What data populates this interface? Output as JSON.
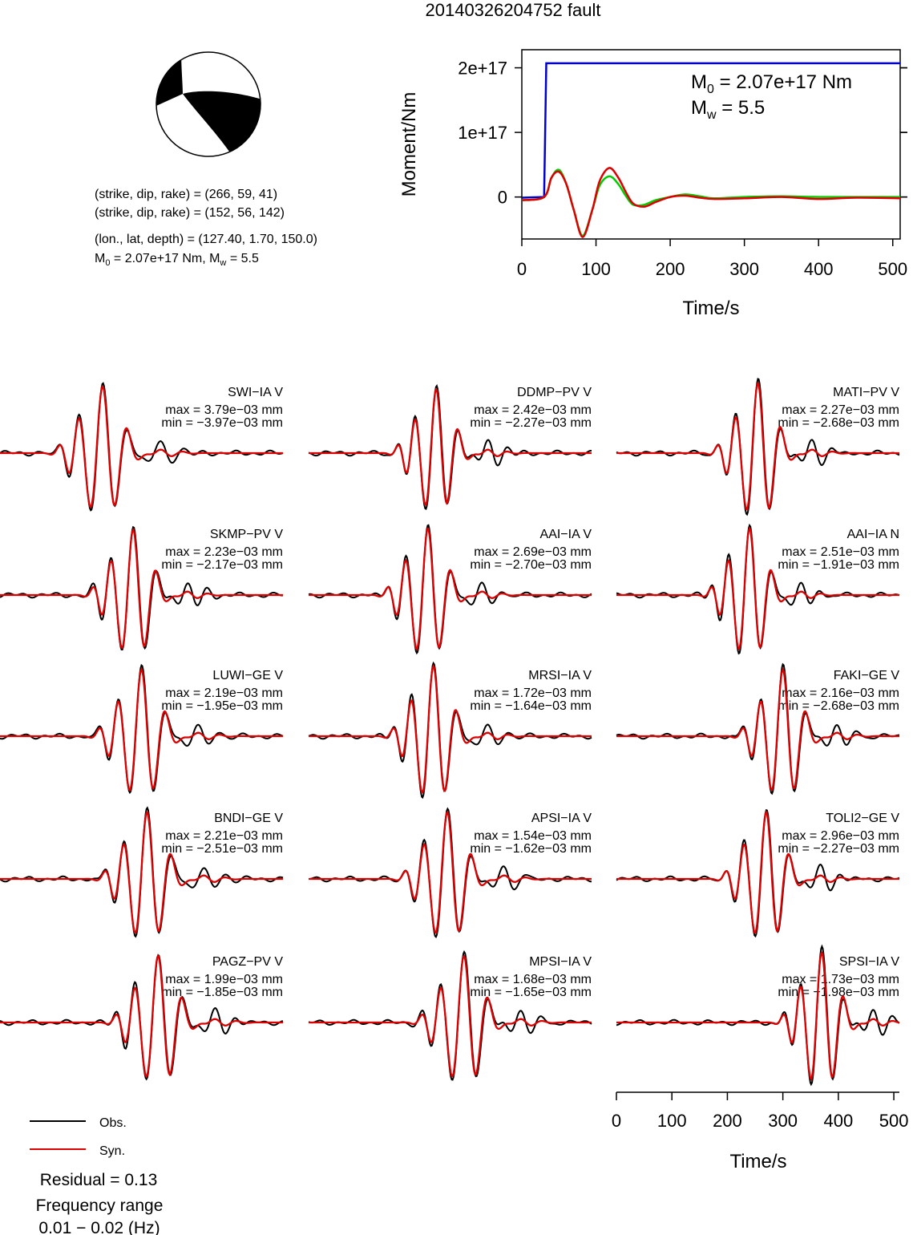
{
  "title": "20140326204752 fault",
  "beachball": {
    "colors": {
      "fill": "#000000",
      "background": "#ffffff"
    }
  },
  "info_lines": {
    "np1": "(strike, dip, rake) = (266, 59, 41)",
    "np2": "(strike, dip, rake) = (152, 56, 142)",
    "location": "(lon., lat, depth) = (127.40, 1.70, 150.0)",
    "moment_prefix": "M",
    "moment_sub": "0",
    "moment_mid": " = 2.07e+17 Nm, M",
    "mw_sub": "w",
    "mw_tail": " = 5.5"
  },
  "chart_data": [
    {
      "type": "line",
      "id": "moment_rate",
      "xlabel": "Time/s",
      "ylabel": "Moment/Nm",
      "xlim": [
        0,
        510
      ],
      "ylim": [
        -6.5e+16,
        2.28e+17
      ],
      "x_ticks": [
        0,
        100,
        200,
        300,
        400,
        500
      ],
      "x_tick_labels": [
        "0",
        "100",
        "200",
        "300",
        "400",
        "500"
      ],
      "y_ticks": [
        0,
        1e+17,
        2e+17
      ],
      "y_tick_labels": [
        "0",
        "1e+17",
        "2e+17"
      ],
      "annotation": {
        "m0_prefix": "M",
        "m0_sub": "0",
        "m0_value": " = 2.07e+17 Nm",
        "mw_prefix": "M",
        "mw_sub": "w",
        "mw_value": " = 5.5"
      },
      "series": [
        {
          "color": "#0000cc",
          "x": [
            0,
            30,
            33,
            510
          ],
          "y": [
            -1000000000000000.0,
            0,
            2.07e+17,
            2.07e+17
          ]
        },
        {
          "color": "#00cc00",
          "x": [
            0,
            30,
            40,
            50,
            60,
            70,
            82,
            95,
            105,
            118,
            130,
            140,
            150,
            165,
            180,
            200,
            220,
            240,
            260,
            300,
            350,
            400,
            450,
            510
          ],
          "y": [
            -5000000000000000.0,
            0,
            3e+16,
            4.2e+16,
            2e+16,
            -2e+16,
            -6e+16,
            -2e+16,
            1.8e+16,
            3.2e+16,
            2e+16,
            2000000000000000.0,
            -1.2e+16,
            -1.2e+16,
            -5000000000000000.0,
            0,
            4000000000000000.0,
            1000000000000000.0,
            -2000000000000000.0,
            0,
            1000000000000000.0,
            0,
            0,
            0
          ]
        },
        {
          "color": "#dd0000",
          "x": [
            0,
            30,
            40,
            50,
            60,
            70,
            82,
            95,
            105,
            118,
            130,
            140,
            150,
            165,
            180,
            200,
            220,
            240,
            260,
            300,
            350,
            400,
            450,
            510
          ],
          "y": [
            -5000000000000000.0,
            0,
            3e+16,
            3.9e+16,
            2e+16,
            -2e+16,
            -6.2e+16,
            -2e+16,
            2.5e+16,
            4.5e+16,
            3e+16,
            8000000000000000.0,
            -1e+16,
            -1.5e+16,
            -8000000000000000.0,
            0,
            2000000000000000.0,
            -1000000000000000.0,
            -3000000000000000.0,
            -2000000000000000.0,
            0,
            -3000000000000000.0,
            -1000000000000000.0,
            -2000000000000000.0
          ]
        }
      ]
    },
    {
      "type": "line",
      "id": "waveforms",
      "xlabel": "Time/s",
      "xlim": [
        0,
        510
      ],
      "x_ticks": [
        0,
        100,
        200,
        300,
        400,
        500
      ],
      "x_tick_labels": [
        "0",
        "100",
        "200",
        "300",
        "400",
        "500"
      ],
      "legend": {
        "position": "bottom-left",
        "obs_label": "Obs.",
        "syn_label": "Syn.",
        "obs_color": "#000000",
        "syn_color": "#dd0000"
      },
      "residual_text": "Residual = 0.13",
      "freq_label": "Frequency range",
      "freq_value": "0.01 − 0.02 (Hz)",
      "stations": [
        {
          "name": "SWI−IA V",
          "max": "max = 3.79e−03 mm",
          "min": "min = −3.97e−03 mm",
          "t0": 185,
          "amp": 1.0,
          "period": 45,
          "sign": 1
        },
        {
          "name": "DDMP−PV V",
          "max": "max = 2.42e−03 mm",
          "min": "min = −2.27e−03 mm",
          "t0": 230,
          "amp": 0.96,
          "period": 40,
          "sign": 1
        },
        {
          "name": "MATI−PV V",
          "max": "max = 2.27e−03 mm",
          "min": "min = −2.68e−03 mm",
          "t0": 255,
          "amp": 1.05,
          "period": 42,
          "sign": 1
        },
        {
          "name": "SKMP−PV V",
          "max": "max = 2.23e−03 mm",
          "min": "min = −2.17e−03 mm",
          "t0": 240,
          "amp": 0.98,
          "period": 42,
          "sign": 1
        },
        {
          "name": "AAI−IA V",
          "max": "max = 2.69e−03 mm",
          "min": "min = −2.70e−03 mm",
          "t0": 215,
          "amp": 1.0,
          "period": 42,
          "sign": 1
        },
        {
          "name": "AAI−IA N",
          "max": "max = 2.51e−03 mm",
          "min": "min = −1.91e−03 mm",
          "t0": 240,
          "amp": 1.0,
          "period": 40,
          "sign": 1
        },
        {
          "name": "LUWI−GE V",
          "max": "max = 2.19e−03 mm",
          "min": "min = −1.95e−03 mm",
          "t0": 255,
          "amp": 1.0,
          "period": 44,
          "sign": 1
        },
        {
          "name": "MRSI−IA V",
          "max": "max = 1.72e−03 mm",
          "min": "min = −1.64e−03 mm",
          "t0": 225,
          "amp": 1.05,
          "period": 42,
          "sign": 1
        },
        {
          "name": "FAKI−GE V",
          "max": "max = 2.16e−03 mm",
          "min": "min = −2.68e−03 mm",
          "t0": 300,
          "amp": 1.0,
          "period": 42,
          "sign": 1
        },
        {
          "name": "BNDI−GE V",
          "max": "max = 2.21e−03 mm",
          "min": "min = −2.51e−03 mm",
          "t0": 265,
          "amp": 1.0,
          "period": 44,
          "sign": 1
        },
        {
          "name": "APSI−IA V",
          "max": "max = 1.54e−03 mm",
          "min": "min = −1.62e−03 mm",
          "t0": 250,
          "amp": 1.0,
          "period": 44,
          "sign": 1
        },
        {
          "name": "TOLI2−GE V",
          "max": "max = 2.96e−03 mm",
          "min": "min = −2.27e−03 mm",
          "t0": 270,
          "amp": 1.0,
          "period": 42,
          "sign": 1
        },
        {
          "name": "PAGZ−PV V",
          "max": "max = 1.99e−03 mm",
          "min": "min = −1.85e−03 mm",
          "t0": 285,
          "amp": 1.0,
          "period": 44,
          "sign": 1
        },
        {
          "name": "MPSI−IA V",
          "max": "max = 1.68e−03 mm",
          "min": "min = −1.65e−03 mm",
          "t0": 280,
          "amp": 1.0,
          "period": 44,
          "sign": 1
        },
        {
          "name": "SPSI−IA V",
          "max": "max = 1.73e−03 mm",
          "min": "min = −1.98e−03 mm",
          "t0": 370,
          "amp": 1.05,
          "period": 40,
          "sign": 1
        }
      ]
    }
  ]
}
